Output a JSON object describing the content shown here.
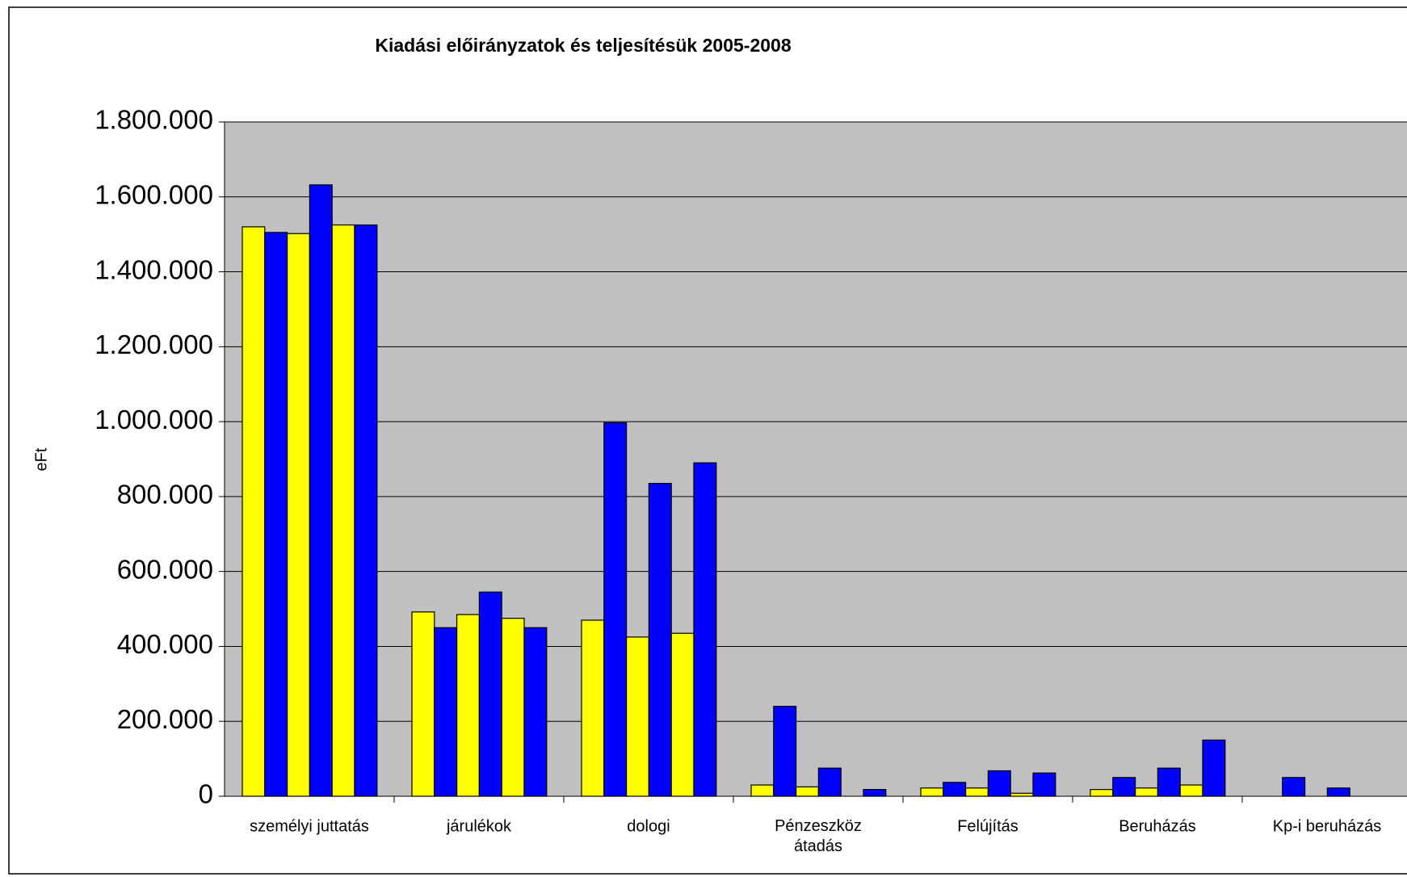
{
  "chart_data": {
    "type": "bar",
    "title": "Kiadási előirányzatok és teljesítésük 2005-2008",
    "y_label": "eFt",
    "categories": [
      "személyi juttatás",
      "járulékok",
      "dologi",
      "Pénzeszköz\nátadás",
      "Felújítás",
      "Beruházás",
      "Kp-i beruházás"
    ],
    "series": [
      {
        "color": "#ffff00",
        "values": [
          1520000,
          492000,
          470000,
          30000,
          22000,
          18000,
          0
        ]
      },
      {
        "color": "#0000ff",
        "values": [
          1505000,
          450000,
          997000,
          240000,
          37000,
          50000,
          50000
        ]
      },
      {
        "color": "#ffff00",
        "values": [
          1502000,
          485000,
          425000,
          25000,
          22000,
          22000,
          0
        ]
      },
      {
        "color": "#0000ff",
        "values": [
          1632000,
          545000,
          835000,
          75000,
          68000,
          75000,
          22000
        ]
      },
      {
        "color": "#ffff00",
        "values": [
          1525000,
          475000,
          435000,
          0,
          8000,
          30000,
          0
        ]
      },
      {
        "color": "#0000ff",
        "values": [
          1525000,
          450000,
          890000,
          18000,
          62000,
          150000,
          0
        ]
      }
    ],
    "ylim": [
      0,
      1800000
    ],
    "yticks": [
      0,
      {
        "value": 200000,
        "label": "200.000"
      },
      {
        "value": 400000,
        "label": "400.000"
      },
      {
        "value": 600000,
        "label": "600.000"
      },
      {
        "value": 800000,
        "label": "800.000"
      },
      {
        "value": 1000000,
        "label": "1.000.000"
      },
      {
        "value": 1200000,
        "label": "1.200.000"
      },
      {
        "value": 1400000,
        "label": "1.400.000"
      },
      {
        "value": 1600000,
        "label": "1.600.000"
      },
      {
        "value": 1800000,
        "label": "1.800.000"
      }
    ],
    "grid": true,
    "plot_background": "#c0c0c0"
  }
}
